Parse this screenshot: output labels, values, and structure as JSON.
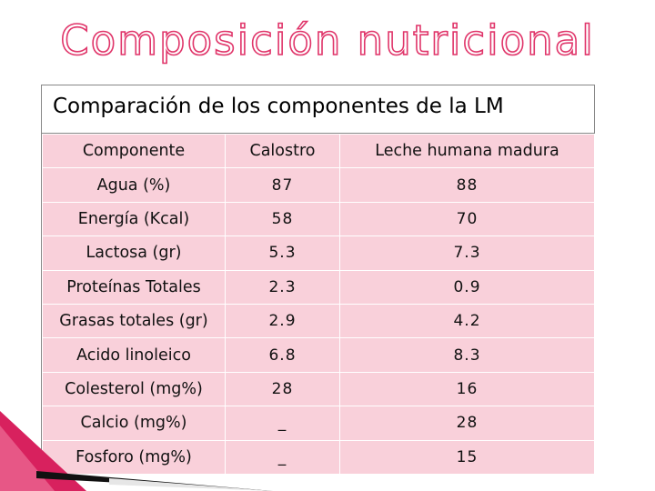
{
  "slide": {
    "title": "Composición nutricional"
  },
  "table": {
    "caption": "Comparación de los componentes de la LM",
    "headers": [
      "Componente",
      "Calostro",
      "Leche humana madura"
    ],
    "rows": [
      [
        "Agua (%)",
        "87",
        "88"
      ],
      [
        "Energía (Kcal)",
        "58",
        "70"
      ],
      [
        "Lactosa (gr)",
        "5.3",
        "7.3"
      ],
      [
        "Proteínas  Totales",
        "2.3",
        "0.9"
      ],
      [
        "Grasas totales (gr)",
        "2.9",
        "4.2"
      ],
      [
        "Acido linoleico",
        "6.8",
        "8.3"
      ],
      [
        "Colesterol (mg%)",
        "28",
        "16"
      ],
      [
        "Calcio (mg%)",
        "_",
        "28"
      ],
      [
        "Fosforo (mg%)",
        "_",
        "15"
      ]
    ]
  },
  "colors": {
    "title_outline": "#e0356a",
    "cell_background": "#f9d0da",
    "ribbon": "#d8215e"
  }
}
